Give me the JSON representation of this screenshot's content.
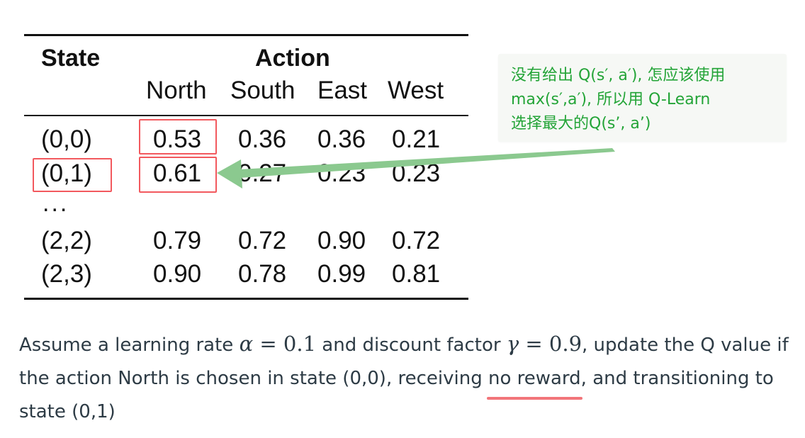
{
  "table": {
    "state_header": "State",
    "action_header": "Action",
    "columns": [
      "North",
      "South",
      "East",
      "West"
    ],
    "rows": [
      {
        "state": "(0,0)",
        "values": [
          "0.53",
          "0.36",
          "0.36",
          "0.21"
        ]
      },
      {
        "state": "(0,1)",
        "values": [
          "0.61",
          "0.27",
          "0.23",
          "0.23"
        ]
      },
      {
        "state": "(2,2)",
        "values": [
          "0.79",
          "0.72",
          "0.90",
          "0.72"
        ]
      },
      {
        "state": "(2,3)",
        "values": [
          "0.90",
          "0.78",
          "0.99",
          "0.81"
        ]
      }
    ],
    "ellipsis": "..."
  },
  "annotation": {
    "lines": [
      "没有给出 Q(s′, a′), 怎应该使用",
      "max(s′,a′), 所以用 Q-Learn",
      "选择最大的Q(s’, a’)"
    ],
    "color": "#23a437",
    "arrow_color": "#8bc98f",
    "highlight_color": "#f2595e"
  },
  "question": {
    "part1": "Assume a learning rate ",
    "alpha_symbol": "α",
    "equals1": " = ",
    "alpha_value": "0.1",
    "part2": " and discount factor ",
    "gamma_symbol": "γ",
    "equals2": " = ",
    "gamma_value": "0.9",
    "part3": ", update the Q value if the action North is chosen in state (0,0), receiving ",
    "underlined": "no reward",
    "part4": ", and transitioning to state (0,1)"
  }
}
